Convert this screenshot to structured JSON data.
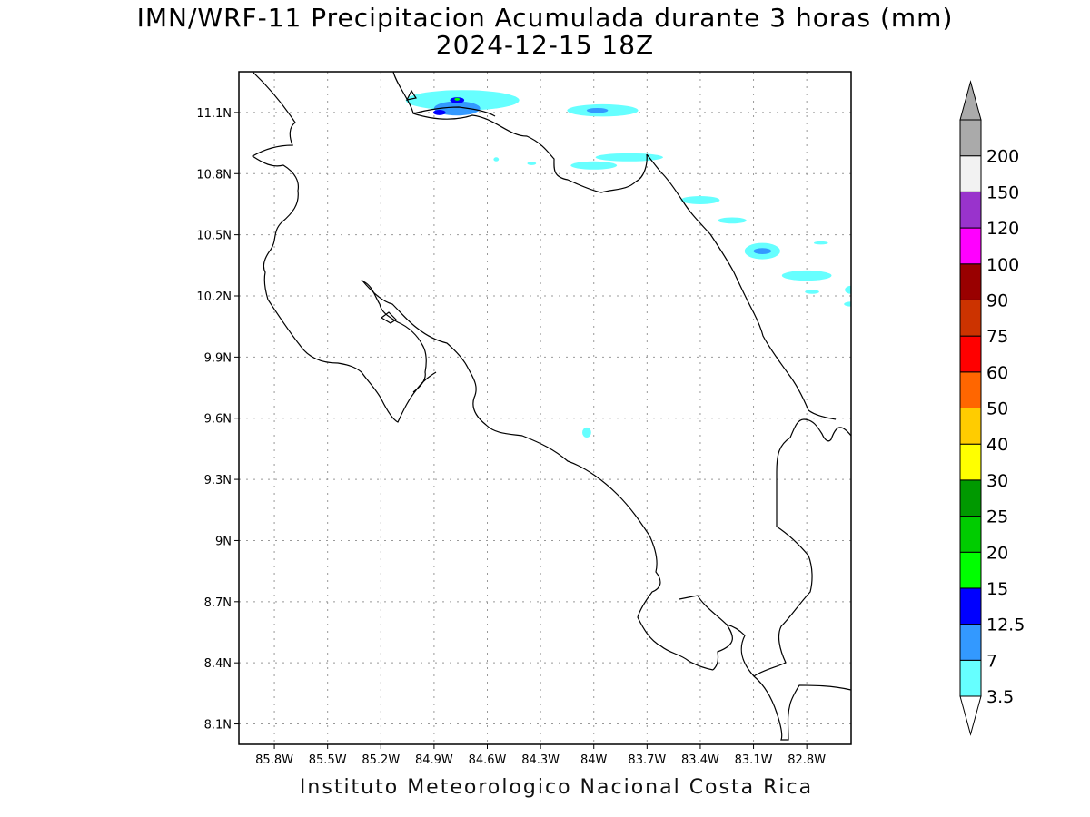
{
  "title": {
    "line1": "IMN/WRF-11 Precipitacion Acumulada durante 3 horas (mm)",
    "line2": "2024-12-15 18Z"
  },
  "footer": "Instituto Meteorologico Nacional Costa Rica",
  "map": {
    "lon_range": [
      -86.0,
      -82.55
    ],
    "lat_range": [
      8.0,
      11.3
    ],
    "lon_ticks": [
      {
        "value": -85.8,
        "label": "85.8W"
      },
      {
        "value": -85.5,
        "label": "85.5W"
      },
      {
        "value": -85.2,
        "label": "85.2W"
      },
      {
        "value": -84.9,
        "label": "84.9W"
      },
      {
        "value": -84.6,
        "label": "84.6W"
      },
      {
        "value": -84.3,
        "label": "84.3W"
      },
      {
        "value": -84.0,
        "label": "84W"
      },
      {
        "value": -83.7,
        "label": "83.7W"
      },
      {
        "value": -83.4,
        "label": "83.4W"
      },
      {
        "value": -83.1,
        "label": "83.1W"
      },
      {
        "value": -82.8,
        "label": "82.8W"
      }
    ],
    "lat_ticks": [
      {
        "value": 11.1,
        "label": "11.1N"
      },
      {
        "value": 10.8,
        "label": "10.8N"
      },
      {
        "value": 10.5,
        "label": "10.5N"
      },
      {
        "value": 10.2,
        "label": "10.2N"
      },
      {
        "value": 9.9,
        "label": "9.9N"
      },
      {
        "value": 9.6,
        "label": "9.6N"
      },
      {
        "value": 9.3,
        "label": "9.3N"
      },
      {
        "value": 9.0,
        "label": "9N"
      },
      {
        "value": 8.7,
        "label": "8.7N"
      },
      {
        "value": 8.4,
        "label": "8.4N"
      },
      {
        "value": 8.1,
        "label": "8.1N"
      }
    ],
    "grid": true,
    "precip_areas": [
      {
        "name": "northern-cluster",
        "value": 3.5,
        "lon": -84.74,
        "lat": 11.16,
        "rx": 0.32,
        "ry": 0.05
      },
      {
        "name": "northern-cluster-core",
        "value": 7,
        "lon": -84.77,
        "lat": 11.12,
        "rx": 0.13,
        "ry": 0.035
      },
      {
        "name": "northern-max-1",
        "value": 12.5,
        "lon": -84.77,
        "lat": 11.16,
        "rx": 0.04,
        "ry": 0.015
      },
      {
        "name": "northern-max-2",
        "value": 12.5,
        "lon": -84.87,
        "lat": 11.1,
        "rx": 0.035,
        "ry": 0.013
      },
      {
        "name": "northern-peak",
        "value": 15,
        "lon": -84.77,
        "lat": 11.165,
        "rx": 0.015,
        "ry": 0.007
      },
      {
        "name": "nicaragua-band",
        "value": 3.5,
        "lon": -83.95,
        "lat": 11.11,
        "rx": 0.2,
        "ry": 0.03
      },
      {
        "name": "nicaragua-band-core",
        "value": 7,
        "lon": -83.98,
        "lat": 11.11,
        "rx": 0.06,
        "ry": 0.012
      },
      {
        "name": "caribbean-streak-1",
        "value": 3.5,
        "lon": -83.8,
        "lat": 10.88,
        "rx": 0.19,
        "ry": 0.02
      },
      {
        "name": "caribbean-streak-2",
        "value": 3.5,
        "lon": -84.0,
        "lat": 10.84,
        "rx": 0.13,
        "ry": 0.02
      },
      {
        "name": "caribbean-streak-3",
        "value": 3.5,
        "lon": -83.4,
        "lat": 10.67,
        "rx": 0.11,
        "ry": 0.02
      },
      {
        "name": "caribbean-streak-4",
        "value": 3.5,
        "lon": -83.22,
        "lat": 10.57,
        "rx": 0.08,
        "ry": 0.015
      },
      {
        "name": "caribbean-cell",
        "value": 3.5,
        "lon": -83.05,
        "lat": 10.42,
        "rx": 0.1,
        "ry": 0.04
      },
      {
        "name": "caribbean-cell-core",
        "value": 7,
        "lon": -83.05,
        "lat": 10.42,
        "rx": 0.05,
        "ry": 0.015
      },
      {
        "name": "caribbean-streak-5",
        "value": 3.5,
        "lon": -82.8,
        "lat": 10.3,
        "rx": 0.14,
        "ry": 0.025
      },
      {
        "name": "caribbean-dot-1",
        "value": 3.5,
        "lon": -82.55,
        "lat": 10.23,
        "rx": 0.035,
        "ry": 0.02
      },
      {
        "name": "caribbean-dot-2",
        "value": 3.5,
        "lon": -82.55,
        "lat": 10.16,
        "rx": 0.04,
        "ry": 0.012
      },
      {
        "name": "caribbean-dot-3",
        "value": 3.5,
        "lon": -82.77,
        "lat": 10.22,
        "rx": 0.04,
        "ry": 0.01
      },
      {
        "name": "caribbean-dot-4",
        "value": 3.5,
        "lon": -82.72,
        "lat": 10.46,
        "rx": 0.04,
        "ry": 0.008
      },
      {
        "name": "inland-speck",
        "value": 3.5,
        "lon": -84.04,
        "lat": 9.53,
        "rx": 0.025,
        "ry": 0.025
      },
      {
        "name": "northwest-speck",
        "value": 3.5,
        "lon": -84.55,
        "lat": 10.87,
        "rx": 0.015,
        "ry": 0.01
      },
      {
        "name": "north-speck",
        "value": 3.5,
        "lon": -84.35,
        "lat": 10.85,
        "rx": 0.025,
        "ry": 0.008
      }
    ]
  },
  "colorbar": {
    "levels": [
      {
        "label": "3.5",
        "color": "#66ffff"
      },
      {
        "label": "7",
        "color": "#3399ff"
      },
      {
        "label": "12.5",
        "color": "#0000ff"
      },
      {
        "label": "15",
        "color": "#00ff00"
      },
      {
        "label": "20",
        "color": "#00cc00"
      },
      {
        "label": "25",
        "color": "#009900"
      },
      {
        "label": "30",
        "color": "#ffff00"
      },
      {
        "label": "40",
        "color": "#ffcc00"
      },
      {
        "label": "50",
        "color": "#ff6600"
      },
      {
        "label": "60",
        "color": "#ff0000"
      },
      {
        "label": "75",
        "color": "#cc3300"
      },
      {
        "label": "90",
        "color": "#990000"
      },
      {
        "label": "100",
        "color": "#ff00ff"
      },
      {
        "label": "120",
        "color": "#9933cc"
      },
      {
        "label": "150",
        "color": "#f2f2f2"
      },
      {
        "label": "200",
        "color": "#aaaaaa"
      }
    ]
  }
}
